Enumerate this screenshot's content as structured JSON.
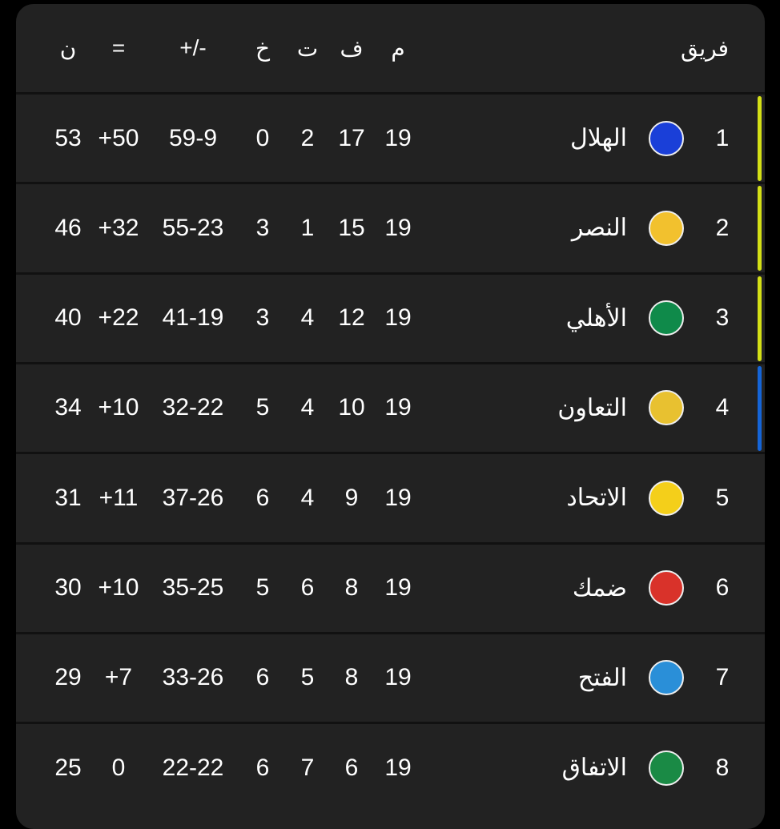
{
  "header": {
    "team": "فريق",
    "played": "م",
    "won": "ف",
    "drawn": "ت",
    "lost": "خ",
    "goals": "+/-",
    "diff": "=",
    "points": "ن"
  },
  "colors": {
    "champions": "#d4e016",
    "qualify": "#1565d8"
  },
  "rows": [
    {
      "rank": "1",
      "team": "الهلال",
      "logo": "al-hilal-logo",
      "logo_color": "#1a3fd8",
      "played": "19",
      "won": "17",
      "drawn": "2",
      "lost": "0",
      "goals": "59-9",
      "diff": "+50",
      "points": "53",
      "zone": "champions"
    },
    {
      "rank": "2",
      "team": "النصر",
      "logo": "al-nassr-logo",
      "logo_color": "#f2c12e",
      "played": "19",
      "won": "15",
      "drawn": "1",
      "lost": "3",
      "goals": "55-23",
      "diff": "+32",
      "points": "46",
      "zone": "champions"
    },
    {
      "rank": "3",
      "team": "الأهلي",
      "logo": "al-ahli-logo",
      "logo_color": "#0f8a4a",
      "played": "19",
      "won": "12",
      "drawn": "4",
      "lost": "3",
      "goals": "41-19",
      "diff": "+22",
      "points": "40",
      "zone": "champions"
    },
    {
      "rank": "4",
      "team": "التعاون",
      "logo": "al-taawoun-logo",
      "logo_color": "#e8c130",
      "played": "19",
      "won": "10",
      "drawn": "4",
      "lost": "5",
      "goals": "32-22",
      "diff": "+10",
      "points": "34",
      "zone": "qualify"
    },
    {
      "rank": "5",
      "team": "الاتحاد",
      "logo": "al-ittihad-logo",
      "logo_color": "#f4cf1a",
      "played": "19",
      "won": "9",
      "drawn": "4",
      "lost": "6",
      "goals": "37-26",
      "diff": "+11",
      "points": "31",
      "zone": ""
    },
    {
      "rank": "6",
      "team": "ضمك",
      "logo": "damac-logo",
      "logo_color": "#d9322a",
      "played": "19",
      "won": "8",
      "drawn": "6",
      "lost": "5",
      "goals": "35-25",
      "diff": "+10",
      "points": "30",
      "zone": ""
    },
    {
      "rank": "7",
      "team": "الفتح",
      "logo": "al-fateh-logo",
      "logo_color": "#2a8fd8",
      "played": "19",
      "won": "8",
      "drawn": "5",
      "lost": "6",
      "goals": "33-26",
      "diff": "+7",
      "points": "29",
      "zone": ""
    },
    {
      "rank": "8",
      "team": "الاتفاق",
      "logo": "al-ettifaq-logo",
      "logo_color": "#1a8a45",
      "played": "19",
      "won": "6",
      "drawn": "7",
      "lost": "6",
      "goals": "22-22",
      "diff": "0",
      "points": "25",
      "zone": ""
    }
  ]
}
